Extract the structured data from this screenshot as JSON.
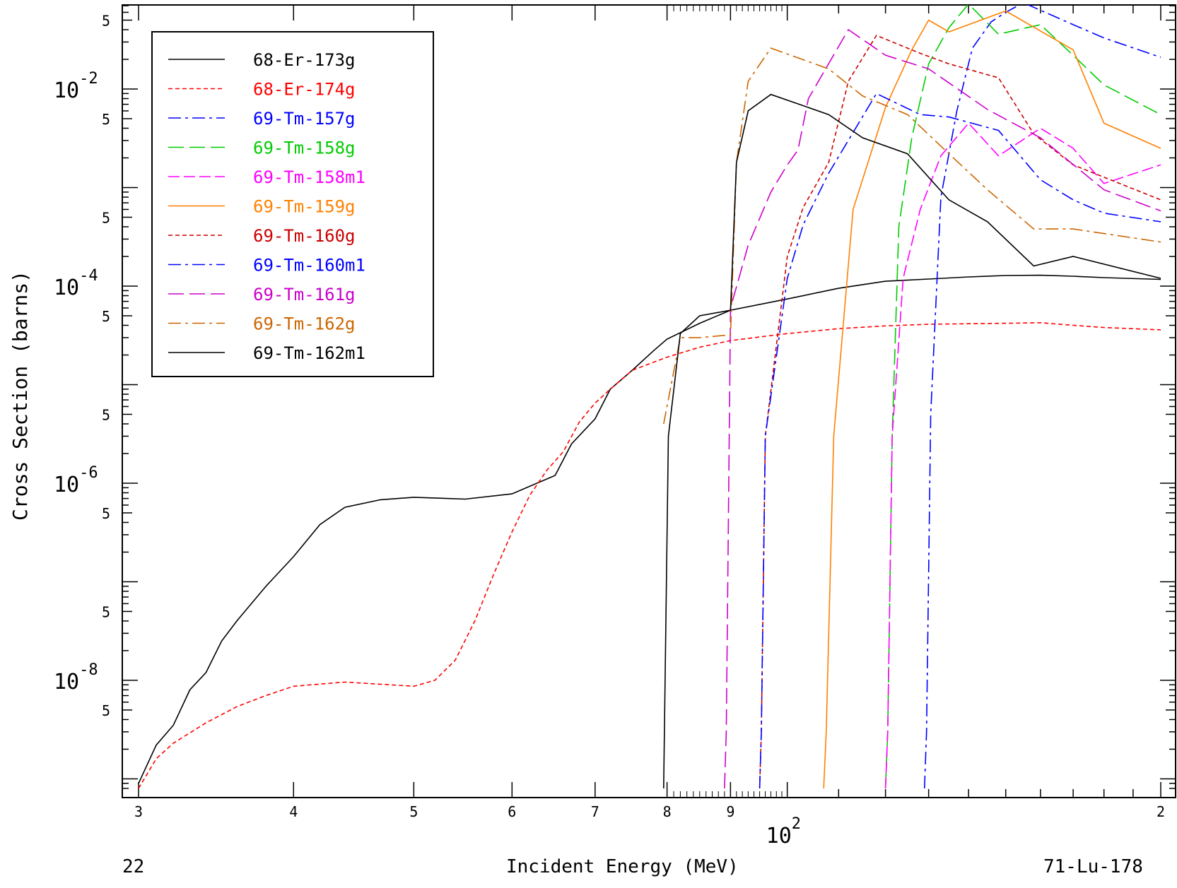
{
  "chart_data": {
    "type": "line",
    "title": "",
    "xlabel": "Incident Energy (MeV)",
    "ylabel": "Cross Section (barns)",
    "x_scale": "log",
    "y_scale": "log",
    "xlim": [
      30,
      200
    ],
    "ylim": [
      8e-10,
      0.09
    ],
    "grid": false,
    "legend_position": "top-left",
    "x_tick_labels": [
      {
        "value": 30,
        "label": "3"
      },
      {
        "value": 40,
        "label": "4"
      },
      {
        "value": 50,
        "label": "5"
      },
      {
        "value": 60,
        "label": "6"
      },
      {
        "value": 70,
        "label": "7"
      },
      {
        "value": 80,
        "label": "8"
      },
      {
        "value": 90,
        "label": "9"
      },
      {
        "value": 200,
        "label": "2"
      }
    ],
    "x_decade_label": {
      "value": 100,
      "base": "10",
      "exp": "2"
    },
    "y_decade_labels": [
      {
        "value": 0.01,
        "base": "10",
        "exp": "-2"
      },
      {
        "value": 0.0001,
        "base": "10",
        "exp": "-4"
      },
      {
        "value": 1e-06,
        "base": "10",
        "exp": "-6"
      },
      {
        "value": 1e-08,
        "base": "10",
        "exp": "-8"
      }
    ],
    "y_five_labels": [
      0.05,
      0.005,
      0.0005,
      5e-05,
      5e-06,
      5e-07,
      5e-08,
      5e-09
    ],
    "series": [
      {
        "name": "68-Er-173g",
        "color": "#000000",
        "dash": "solid",
        "points": [
          [
            30,
            9e-10
          ],
          [
            31,
            2.2e-09
          ],
          [
            32,
            3.5e-09
          ],
          [
            33,
            8e-09
          ],
          [
            34,
            1.2e-08
          ],
          [
            35,
            2.5e-08
          ],
          [
            36,
            4e-08
          ],
          [
            38,
            9e-08
          ],
          [
            40,
            1.8e-07
          ],
          [
            42,
            3.8e-07
          ],
          [
            44,
            5.7e-07
          ],
          [
            47,
            6.8e-07
          ],
          [
            50,
            7.2e-07
          ],
          [
            55,
            6.9e-07
          ],
          [
            60,
            7.8e-07
          ],
          [
            65,
            1.2e-06
          ],
          [
            67,
            2.5e-06
          ],
          [
            70,
            4.5e-06
          ],
          [
            72,
            9e-06
          ],
          [
            75,
            1.4e-05
          ],
          [
            78,
            2.2e-05
          ],
          [
            80,
            2.9e-05
          ],
          [
            85,
            4.2e-05
          ],
          [
            90,
            5.7e-05
          ],
          [
            100,
            7.4e-05
          ],
          [
            110,
            9.5e-05
          ],
          [
            120,
            0.000112
          ],
          [
            130,
            0.000118
          ],
          [
            140,
            0.000124
          ],
          [
            150,
            0.000128
          ],
          [
            160,
            0.000129
          ],
          [
            170,
            0.000126
          ],
          [
            180,
            0.000122
          ],
          [
            200,
            0.000117
          ]
        ]
      },
      {
        "name": "68-Er-174g",
        "color": "#ff0000",
        "dash": "short",
        "points": [
          [
            30,
            8e-10
          ],
          [
            31,
            1.6e-09
          ],
          [
            32,
            2.3e-09
          ],
          [
            34,
            3.7e-09
          ],
          [
            36,
            5.4e-09
          ],
          [
            38,
            7e-09
          ],
          [
            40,
            8.7e-09
          ],
          [
            44,
            9.6e-09
          ],
          [
            50,
            8.7e-09
          ],
          [
            52,
            1e-08
          ],
          [
            54,
            1.6e-08
          ],
          [
            56,
            4e-08
          ],
          [
            58,
            1.2e-07
          ],
          [
            60,
            3.2e-07
          ],
          [
            62,
            7.5e-07
          ],
          [
            64,
            1.35e-06
          ],
          [
            66,
            2.1e-06
          ],
          [
            68,
            4.2e-06
          ],
          [
            70,
            6.5e-06
          ],
          [
            72,
            9e-06
          ],
          [
            75,
            1.4e-05
          ],
          [
            80,
            1.9e-05
          ],
          [
            85,
            2.4e-05
          ],
          [
            90,
            2.8e-05
          ],
          [
            100,
            3.3e-05
          ],
          [
            110,
            3.7e-05
          ],
          [
            120,
            3.95e-05
          ],
          [
            130,
            4.1e-05
          ],
          [
            150,
            4.2e-05
          ],
          [
            160,
            4.25e-05
          ],
          [
            170,
            4e-05
          ],
          [
            180,
            3.8e-05
          ],
          [
            200,
            3.6e-05
          ]
        ]
      },
      {
        "name": "69-Tm-157g",
        "color": "#0000ff",
        "dash": "dashdot",
        "points": [
          [
            129,
            8e-10
          ],
          [
            129.5,
            3e-09
          ],
          [
            130.5,
            5e-06
          ],
          [
            133,
            0.0008
          ],
          [
            137,
            0.006
          ],
          [
            141,
            0.026
          ],
          [
            146,
            0.048
          ],
          [
            150,
            0.06
          ],
          [
            155,
            0.075
          ],
          [
            160,
            0.063
          ],
          [
            170,
            0.045
          ],
          [
            180,
            0.033
          ],
          [
            200,
            0.021
          ]
        ]
      },
      {
        "name": "69-Tm-158g",
        "color": "#00cc00",
        "dash": "longdash",
        "points": [
          [
            120,
            8e-10
          ],
          [
            120.5,
            3e-09
          ],
          [
            121.5,
            3e-06
          ],
          [
            123,
            0.0004
          ],
          [
            126,
            0.0032
          ],
          [
            130,
            0.018
          ],
          [
            135,
            0.042
          ],
          [
            140,
            0.073
          ],
          [
            148,
            0.036
          ],
          [
            160,
            0.045
          ],
          [
            170,
            0.022
          ],
          [
            180,
            0.011
          ],
          [
            200,
            0.0055
          ]
        ]
      },
      {
        "name": "69-Tm-158m1",
        "color": "#ff00ff",
        "dash": "dash",
        "points": [
          [
            120,
            8e-10
          ],
          [
            120.5,
            3e-09
          ],
          [
            121.5,
            3e-06
          ],
          [
            124,
            0.00012
          ],
          [
            128,
            0.0006
          ],
          [
            133,
            0.0021
          ],
          [
            140,
            0.0045
          ],
          [
            148,
            0.0021
          ],
          [
            160,
            0.004
          ],
          [
            170,
            0.0025
          ],
          [
            180,
            0.0011
          ],
          [
            200,
            0.0017
          ]
        ]
      },
      {
        "name": "69-Tm-159g",
        "color": "#ff8000",
        "dash": "solid",
        "points": [
          [
            107,
            8e-10
          ],
          [
            107.5,
            3e-09
          ],
          [
            109,
            3e-06
          ],
          [
            113,
            0.0006
          ],
          [
            120,
            0.0065
          ],
          [
            126,
            0.025
          ],
          [
            130,
            0.05
          ],
          [
            135,
            0.038
          ],
          [
            150,
            0.062
          ],
          [
            170,
            0.025
          ],
          [
            180,
            0.0045
          ],
          [
            200,
            0.0025
          ]
        ]
      },
      {
        "name": "69-Tm-160g",
        "color": "#cc0000",
        "dash": "short",
        "points": [
          [
            95,
            8e-10
          ],
          [
            95.3,
            3e-09
          ],
          [
            96,
            3e-06
          ],
          [
            100,
            0.0002
          ],
          [
            103,
            0.00063
          ],
          [
            108,
            0.0018
          ],
          [
            112,
            0.012
          ],
          [
            118,
            0.035
          ],
          [
            128,
            0.023
          ],
          [
            135,
            0.018
          ],
          [
            148,
            0.013
          ],
          [
            158,
            0.0035
          ],
          [
            170,
            0.0017
          ],
          [
            200,
            0.00075
          ]
        ]
      },
      {
        "name": "69-Tm-160m1",
        "color": "#0000ff",
        "dash": "dashdot",
        "points": [
          [
            95,
            8e-10
          ],
          [
            95.3,
            3e-09
          ],
          [
            96,
            3e-06
          ],
          [
            100,
            0.00012
          ],
          [
            103,
            0.00042
          ],
          [
            108,
            0.0014
          ],
          [
            118,
            0.009
          ],
          [
            128,
            0.0055
          ],
          [
            135,
            0.0052
          ],
          [
            148,
            0.0038
          ],
          [
            160,
            0.0012
          ],
          [
            170,
            0.00075
          ],
          [
            180,
            0.00055
          ],
          [
            200,
            0.00045
          ]
        ]
      },
      {
        "name": "69-Tm-161g",
        "color": "#cc00cc",
        "dash": "longdash",
        "points": [
          [
            89,
            8e-10
          ],
          [
            89.3,
            3e-09
          ],
          [
            90,
            6e-05
          ],
          [
            93,
            0.00026
          ],
          [
            97,
            0.0009
          ],
          [
            100,
            0.0017
          ],
          [
            102,
            0.0024
          ],
          [
            104,
            0.008
          ],
          [
            112,
            0.04
          ],
          [
            120,
            0.022
          ],
          [
            130,
            0.016
          ],
          [
            145,
            0.0062
          ],
          [
            160,
            0.0032
          ],
          [
            180,
            0.00095
          ],
          [
            200,
            0.00058
          ]
        ]
      },
      {
        "name": "69-Tm-162g",
        "color": "#cc6600",
        "dash": "dashdot",
        "points": [
          [
            79.5,
            4e-06
          ],
          [
            82,
            3e-05
          ],
          [
            85,
            3e-05
          ],
          [
            90,
            3.2e-05
          ],
          [
            91,
            0.0018
          ],
          [
            93,
            0.012
          ],
          [
            97,
            0.026
          ],
          [
            108,
            0.016
          ],
          [
            115,
            0.0085
          ],
          [
            125,
            0.0055
          ],
          [
            135,
            0.0022
          ],
          [
            145,
            0.00095
          ],
          [
            158,
            0.00038
          ],
          [
            170,
            0.00038
          ],
          [
            200,
            0.00028
          ]
        ]
      },
      {
        "name": "69-Tm-162m1",
        "color": "#000000",
        "dash": "solid",
        "points": [
          [
            79.5,
            8e-10
          ],
          [
            80.2,
            3e-06
          ],
          [
            82,
            3.3e-05
          ],
          [
            85,
            5e-05
          ],
          [
            90,
            5.7e-05
          ],
          [
            91,
            0.0018
          ],
          [
            93,
            0.006
          ],
          [
            97,
            0.0088
          ],
          [
            108,
            0.0055
          ],
          [
            115,
            0.0032
          ],
          [
            125,
            0.0022
          ],
          [
            135,
            0.00075
          ],
          [
            145,
            0.00045
          ],
          [
            158,
            0.00016
          ],
          [
            170,
            0.0002
          ],
          [
            200,
            0.00012
          ]
        ]
      }
    ]
  },
  "footer": {
    "left": "22",
    "center": "Incident Energy (MeV)",
    "right": "71-Lu-178"
  }
}
